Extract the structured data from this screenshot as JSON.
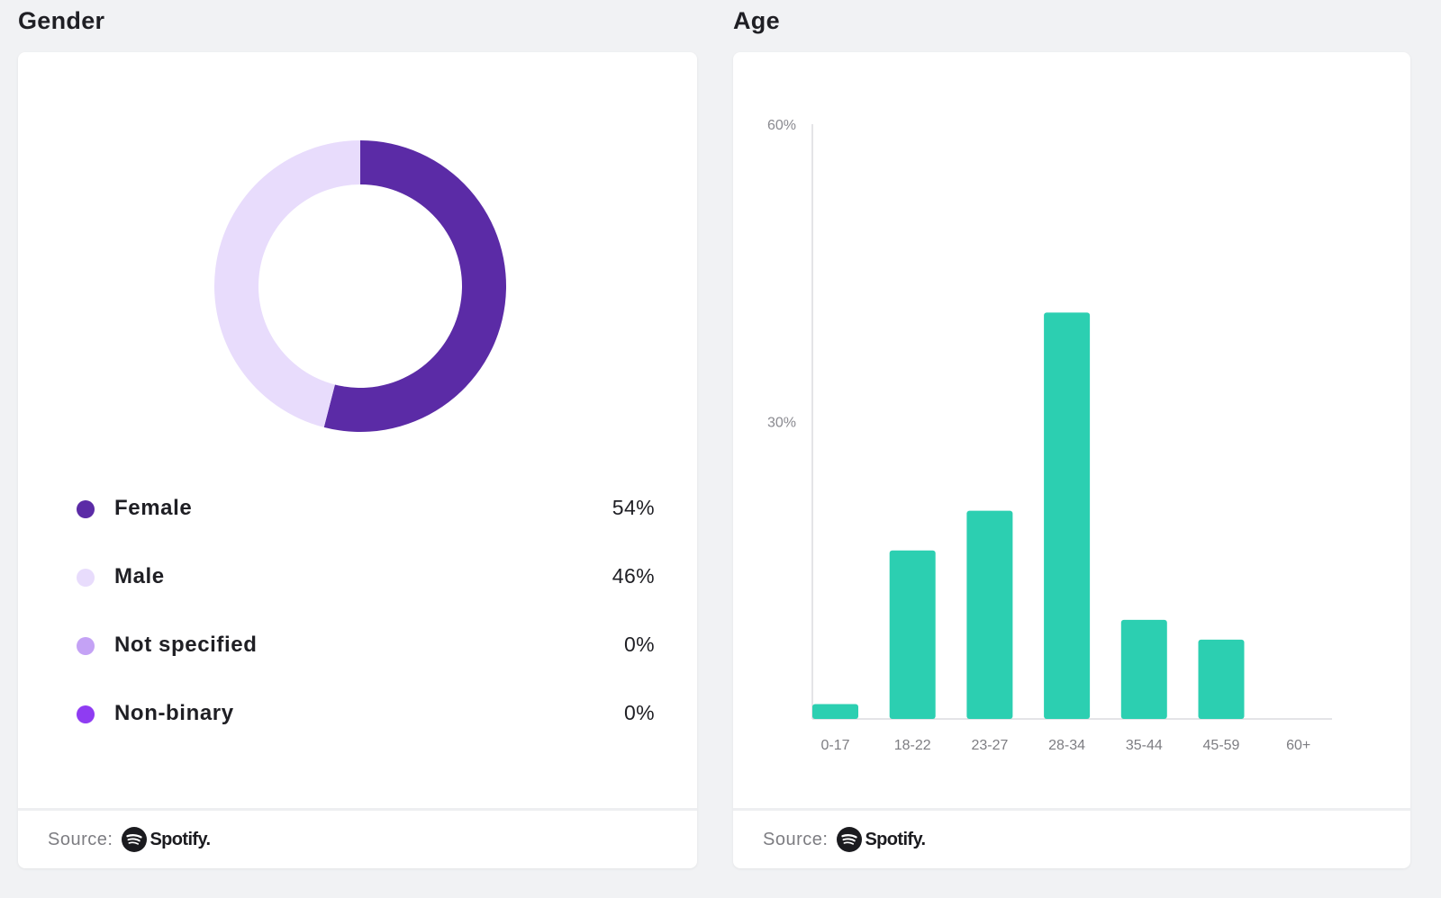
{
  "gender": {
    "title": "Gender",
    "items": [
      {
        "label": "Female",
        "value": "54%",
        "percent": 54,
        "color": "#5b2ba6"
      },
      {
        "label": "Male",
        "value": "46%",
        "percent": 46,
        "color": "#e8dcfc"
      },
      {
        "label": "Not specified",
        "value": "0%",
        "percent": 0,
        "color": "#c4a2f5"
      },
      {
        "label": "Non-binary",
        "value": "0%",
        "percent": 0,
        "color": "#8f3cf2"
      }
    ],
    "footer": {
      "source_label": "Source:",
      "brand": "Spotify."
    }
  },
  "age": {
    "title": "Age",
    "footer": {
      "source_label": "Source:",
      "brand": "Spotify."
    }
  },
  "chart_data": [
    {
      "type": "pie",
      "title": "Gender",
      "categories": [
        "Female",
        "Male",
        "Not specified",
        "Non-binary"
      ],
      "values": [
        54,
        46,
        0,
        0
      ],
      "colors": [
        "#5b2ba6",
        "#e8dcfc",
        "#c4a2f5",
        "#8f3cf2"
      ]
    },
    {
      "type": "bar",
      "title": "Age",
      "categories": [
        "0-17",
        "18-22",
        "23-27",
        "28-34",
        "35-44",
        "45-59",
        "60+"
      ],
      "values": [
        1.5,
        17,
        21,
        41,
        10,
        8,
        0
      ],
      "ylim": [
        0,
        60
      ],
      "yticks": [
        "30%",
        "60%"
      ],
      "ytick_values": [
        30,
        60
      ],
      "bar_color": "#2ccfb1",
      "xlabel": "",
      "ylabel": ""
    }
  ]
}
